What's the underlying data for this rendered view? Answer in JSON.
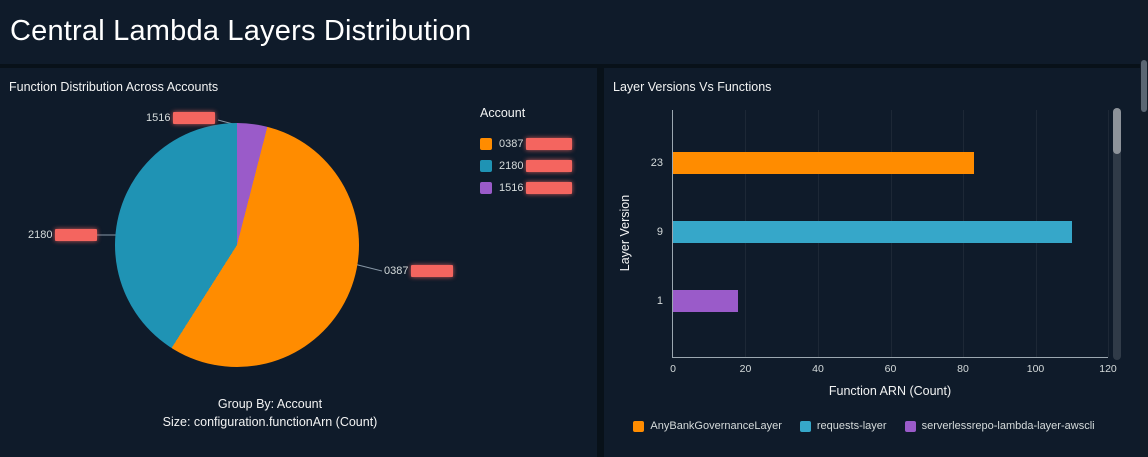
{
  "page": {
    "title": "Central Lambda Layers Distribution"
  },
  "pie_panel": {
    "title": "Function Distribution Across Accounts",
    "legend_title": "Account",
    "footer_group_by": "Group By: Account",
    "footer_size": "Size: configuration.functionArn (Count)"
  },
  "bar_panel": {
    "title": "Layer Versions Vs Functions",
    "xlabel": "Function ARN (Count)",
    "ylabel": "Layer Version"
  },
  "chart_data": [
    {
      "type": "pie",
      "title": "Function Distribution Across Accounts",
      "legend_title": "Account",
      "group_by": "Account",
      "size_metric": "configuration.functionArn (Count)",
      "slices": [
        {
          "label": "0387",
          "redacted": true,
          "value": 55,
          "color": "#ff8c00"
        },
        {
          "label": "2180",
          "redacted": true,
          "value": 41,
          "color": "#1f93b4"
        },
        {
          "label": "1516",
          "redacted": true,
          "value": 4,
          "color": "#9a5bc9"
        }
      ],
      "draw_order": [
        2,
        0,
        1
      ],
      "legend_position": "right"
    },
    {
      "type": "bar",
      "orientation": "horizontal",
      "title": "Layer Versions Vs Functions",
      "categories": [
        "23",
        "9",
        "1"
      ],
      "series": [
        {
          "name": "AnyBankGovernanceLayer",
          "category": "23",
          "value": 83,
          "color": "#ff8c00"
        },
        {
          "name": "requests-layer",
          "category": "9",
          "value": 110,
          "color": "#36a7c9"
        },
        {
          "name": "serverlessrepo-lambda-layer-awscli",
          "category": "1",
          "value": 18,
          "color": "#9a5bc9"
        }
      ],
      "xlabel": "Function ARN (Count)",
      "ylabel": "Layer Version",
      "xlim": [
        0,
        120
      ],
      "xticks": [
        0,
        20,
        40,
        60,
        80,
        100,
        120
      ],
      "grid": "faint-vertical",
      "legend_position": "bottom"
    }
  ],
  "colors": {
    "background": "#081119",
    "panel": "#0f1b2a",
    "accent_orange": "#ff8c00",
    "accent_blue": "#36a7c9",
    "accent_purple": "#9a5bc9",
    "redaction": "#f4655f",
    "text": "#d5dbdb"
  }
}
